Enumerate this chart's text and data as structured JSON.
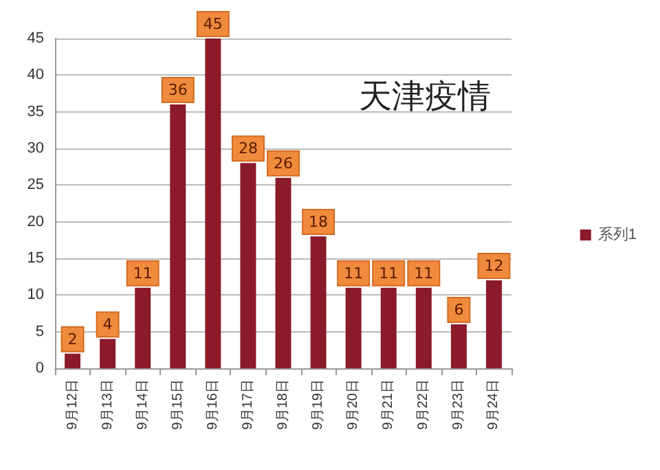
{
  "chart_data": {
    "type": "bar",
    "title": "天津疫情",
    "categories": [
      "9月12日",
      "9月13日",
      "9月14日",
      "9月15日",
      "9月16日",
      "9月17日",
      "9月18日",
      "9月19日",
      "9月20日",
      "9月21日",
      "9月22日",
      "9月23日",
      "9月24日"
    ],
    "series": [
      {
        "name": "系列1",
        "color": "#8b1a2a",
        "values": [
          2,
          4,
          11,
          36,
          45,
          28,
          26,
          18,
          11,
          11,
          11,
          6,
          12
        ]
      }
    ],
    "ylim": [
      0,
      45
    ],
    "yticks": [
      0,
      5,
      10,
      15,
      20,
      25,
      30,
      35,
      40,
      45
    ],
    "grid": "y",
    "legend": "right",
    "data_labels": true
  }
}
